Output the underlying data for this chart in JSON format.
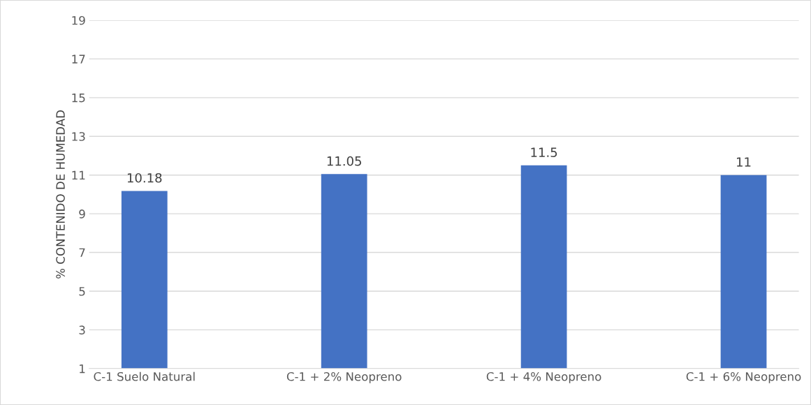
{
  "chart_data": {
    "type": "bar",
    "ylabel": "% CONTENIDO DE HUMEDAD",
    "categories": [
      "C-1 Suelo Natural",
      "C-1 + 2% Neopreno",
      "C-1 + 4% Neopreno",
      "C-1 + 6% Neopreno"
    ],
    "values": [
      10.18,
      11.05,
      11.5,
      11
    ],
    "color": "#4472c4",
    "ylim": [
      1,
      19
    ],
    "yticks": [
      1,
      3,
      5,
      7,
      9,
      11,
      13,
      15,
      17,
      19
    ],
    "grid": "y",
    "data_labels": true,
    "legend": false
  }
}
